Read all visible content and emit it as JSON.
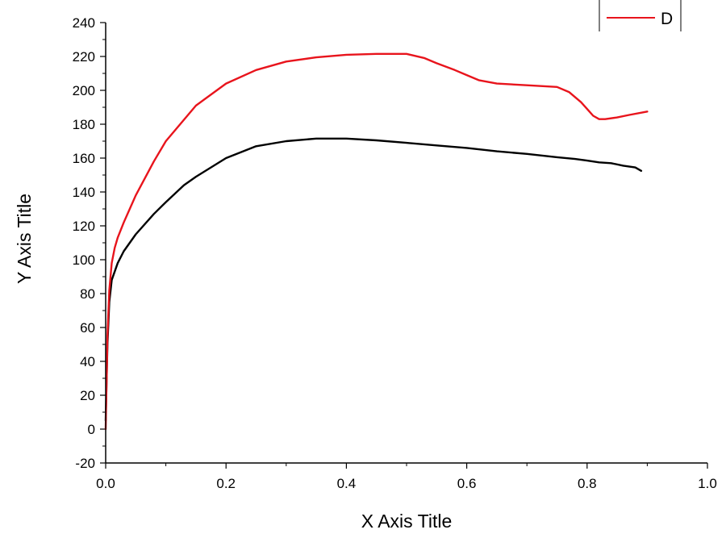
{
  "chart_data": {
    "type": "line",
    "xlabel": "X Axis Title",
    "ylabel": "Y Axis Title",
    "xlim": [
      0.0,
      1.0
    ],
    "ylim": [
      -20,
      240
    ],
    "xticks": [
      0.0,
      0.2,
      0.4,
      0.6,
      0.8,
      1.0
    ],
    "xtick_labels": [
      "0.0",
      "0.2",
      "0.4",
      "0.6",
      "0.8",
      "1.0"
    ],
    "yticks": [
      -20,
      0,
      20,
      40,
      60,
      80,
      100,
      120,
      140,
      160,
      180,
      200,
      220,
      240
    ],
    "ytick_labels": [
      "-20",
      "0",
      "20",
      "40",
      "60",
      "80",
      "100",
      "120",
      "140",
      "160",
      "180",
      "200",
      "220",
      "240"
    ],
    "grid": false,
    "legend_position": "top-right",
    "series": [
      {
        "name": "",
        "color": "#000000",
        "x": [
          0.0,
          0.003,
          0.006,
          0.01,
          0.02,
          0.03,
          0.05,
          0.08,
          0.1,
          0.13,
          0.15,
          0.2,
          0.25,
          0.3,
          0.35,
          0.4,
          0.45,
          0.5,
          0.55,
          0.6,
          0.65,
          0.7,
          0.75,
          0.78,
          0.8,
          0.82,
          0.84,
          0.86,
          0.88,
          0.89
        ],
        "y": [
          5,
          50,
          75,
          88,
          98,
          105,
          115,
          127,
          134,
          144,
          149,
          160,
          167,
          170,
          171.5,
          171.5,
          170.5,
          169,
          167.5,
          166,
          164,
          162.5,
          160.5,
          159.5,
          158.5,
          157.5,
          157,
          155.5,
          154.5,
          152.5
        ]
      },
      {
        "name": "D",
        "color": "#e8141c",
        "x": [
          0.0,
          0.003,
          0.006,
          0.01,
          0.015,
          0.02,
          0.03,
          0.05,
          0.08,
          0.1,
          0.15,
          0.2,
          0.25,
          0.3,
          0.35,
          0.4,
          0.45,
          0.5,
          0.53,
          0.55,
          0.58,
          0.6,
          0.62,
          0.65,
          0.7,
          0.75,
          0.77,
          0.79,
          0.8,
          0.81,
          0.82,
          0.83,
          0.85,
          0.87,
          0.9
        ],
        "y": [
          0,
          55,
          82,
          98,
          107,
          113,
          122,
          138,
          158,
          170,
          191,
          204,
          212,
          217,
          219.5,
          221,
          221.5,
          221.5,
          219,
          216,
          212,
          209,
          206,
          204,
          203,
          202,
          199,
          193,
          189,
          185,
          183,
          183,
          184,
          185.5,
          187.5
        ]
      }
    ]
  },
  "legend": {
    "label": "D",
    "color": "#e8141c"
  }
}
